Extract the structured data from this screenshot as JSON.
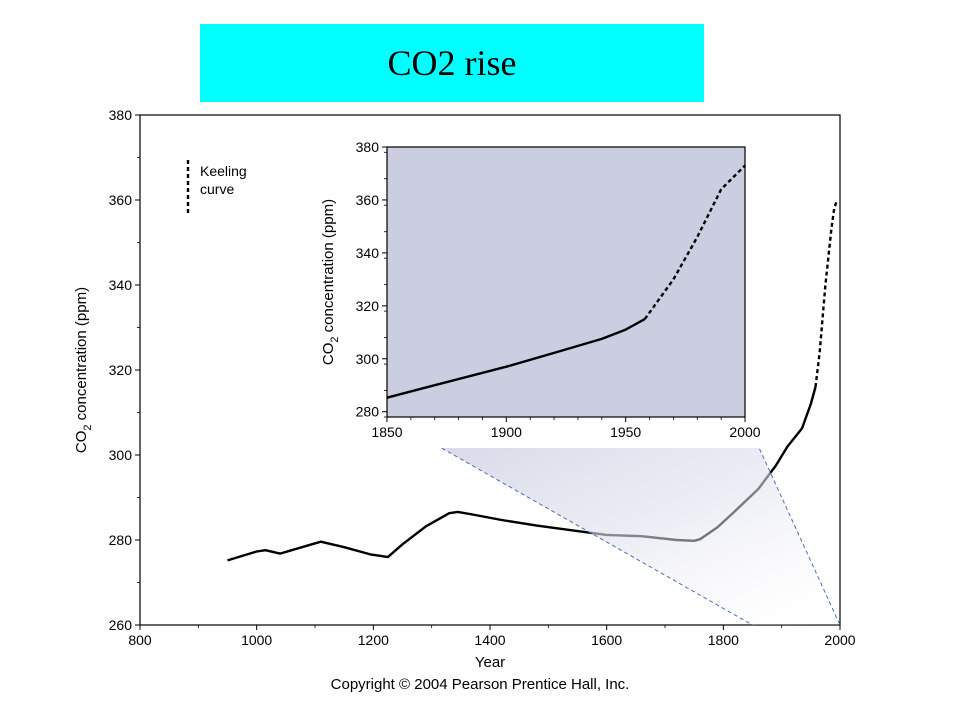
{
  "title": "CO2 rise",
  "copyright": "Copyright © 2004 Pearson Prentice Hall, Inc.",
  "colors": {
    "title_bg": "#00ffff",
    "inset_bg": "#cbcee0",
    "line": "#000000",
    "callout": "#4a6fb0"
  },
  "chart_data": [
    {
      "type": "line",
      "title": "",
      "xlabel": "Year",
      "ylabel_prefix": "CO",
      "ylabel_sub": "2",
      "ylabel_suffix": " concentration (ppm)",
      "xlim": [
        800,
        2000
      ],
      "ylim": [
        260,
        380
      ],
      "xticks": [
        800,
        1000,
        1200,
        1400,
        1600,
        1800,
        2000
      ],
      "yticks": [
        260,
        280,
        300,
        320,
        340,
        360,
        380
      ],
      "legend": {
        "position": "top-left",
        "label_line1": "Keeling",
        "label_line2": "curve"
      },
      "series": [
        {
          "style": "solid",
          "points": [
            [
              950,
              275.2
            ],
            [
              1000,
              277.3
            ],
            [
              1015,
              277.6
            ],
            [
              1040,
              276.8
            ],
            [
              1060,
              277.6
            ],
            [
              1110,
              279.6
            ],
            [
              1150,
              278.3
            ],
            [
              1195,
              276.6
            ],
            [
              1225,
              276.0
            ],
            [
              1250,
              279.0
            ],
            [
              1290,
              283.2
            ],
            [
              1330,
              286.3
            ],
            [
              1345,
              286.6
            ],
            [
              1370,
              286.0
            ],
            [
              1420,
              284.7
            ],
            [
              1480,
              283.4
            ],
            [
              1550,
              282.1
            ],
            [
              1600,
              281.2
            ],
            [
              1660,
              280.9
            ],
            [
              1720,
              280.0
            ],
            [
              1750,
              279.8
            ],
            [
              1760,
              280.2
            ],
            [
              1790,
              283.0
            ],
            [
              1820,
              286.8
            ],
            [
              1860,
              292.0
            ],
            [
              1890,
              297.5
            ],
            [
              1910,
              302.0
            ],
            [
              1935,
              306.3
            ],
            [
              1950,
              312.0
            ],
            [
              1958,
              316.0
            ]
          ]
        },
        {
          "style": "dashed",
          "name": "Keeling curve",
          "points": [
            [
              1958,
              316.0
            ],
            [
              1965,
              324.0
            ],
            [
              1975,
              340.0
            ],
            [
              1985,
              353.0
            ],
            [
              1990,
              358.0
            ],
            [
              1995,
              360.0
            ]
          ]
        }
      ]
    },
    {
      "type": "line",
      "title": "",
      "xlabel": "",
      "ylabel_prefix": "CO",
      "ylabel_sub": "2",
      "ylabel_suffix": " concentration (ppm)",
      "xlim": [
        1850,
        2000
      ],
      "ylim": [
        278,
        380
      ],
      "xticks": [
        1850,
        1900,
        1950,
        2000
      ],
      "yticks": [
        280,
        300,
        320,
        340,
        360,
        380
      ],
      "series": [
        {
          "style": "solid",
          "points": [
            [
              1850,
              285.3
            ],
            [
              1870,
              290.0
            ],
            [
              1900,
              297.0
            ],
            [
              1920,
              302.2
            ],
            [
              1940,
              307.5
            ],
            [
              1950,
              311.0
            ],
            [
              1958,
              315.0
            ]
          ]
        },
        {
          "style": "dashed",
          "name": "Keeling curve",
          "points": [
            [
              1958,
              315.0
            ],
            [
              1970,
              330.0
            ],
            [
              1980,
              346.0
            ],
            [
              1990,
              364.0
            ],
            [
              2000,
              373.0
            ]
          ]
        }
      ]
    }
  ]
}
